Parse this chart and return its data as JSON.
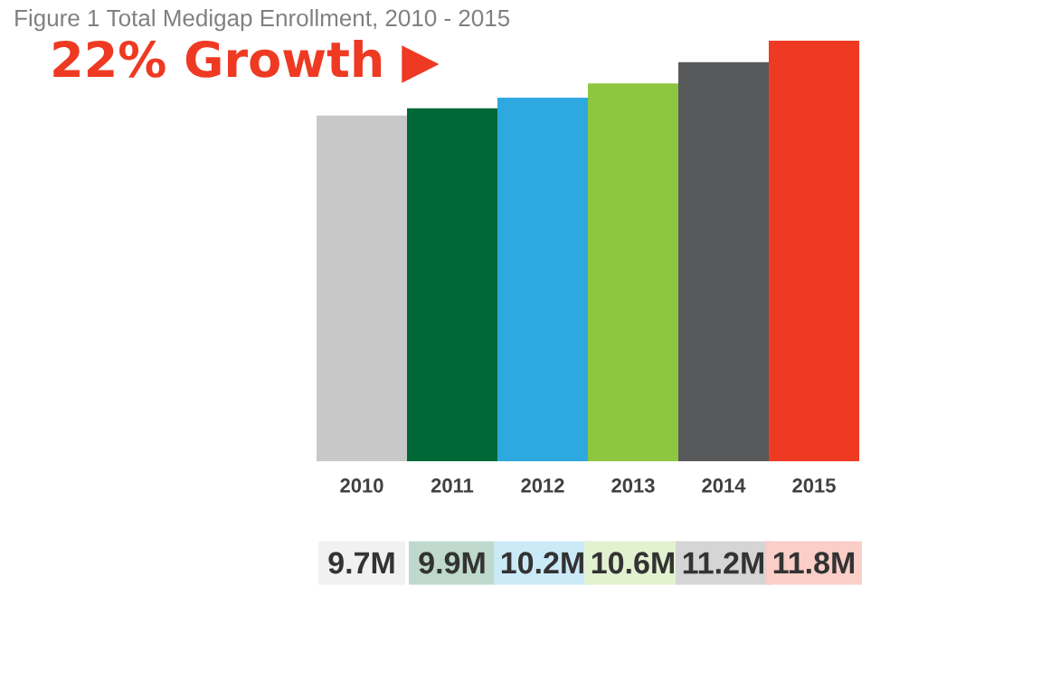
{
  "chart_data": {
    "type": "bar",
    "title": "Figure 1 Total Medigap Enrollment, 2010 - 2015",
    "categories": [
      "2010",
      "2011",
      "2012",
      "2013",
      "2014",
      "2015"
    ],
    "values": [
      9.7,
      9.9,
      10.2,
      10.6,
      11.2,
      11.8
    ],
    "colors": [
      "#c8c8c8",
      "#006837",
      "#2ea9e0",
      "#8dc63f",
      "#58595b",
      "#ee3a23"
    ],
    "value_labels": [
      "9.7M",
      "9.9M",
      "10.2M",
      "10.6M",
      "11.2M",
      "11.8M"
    ],
    "annotations": [
      "22% Growth ▶"
    ]
  }
}
